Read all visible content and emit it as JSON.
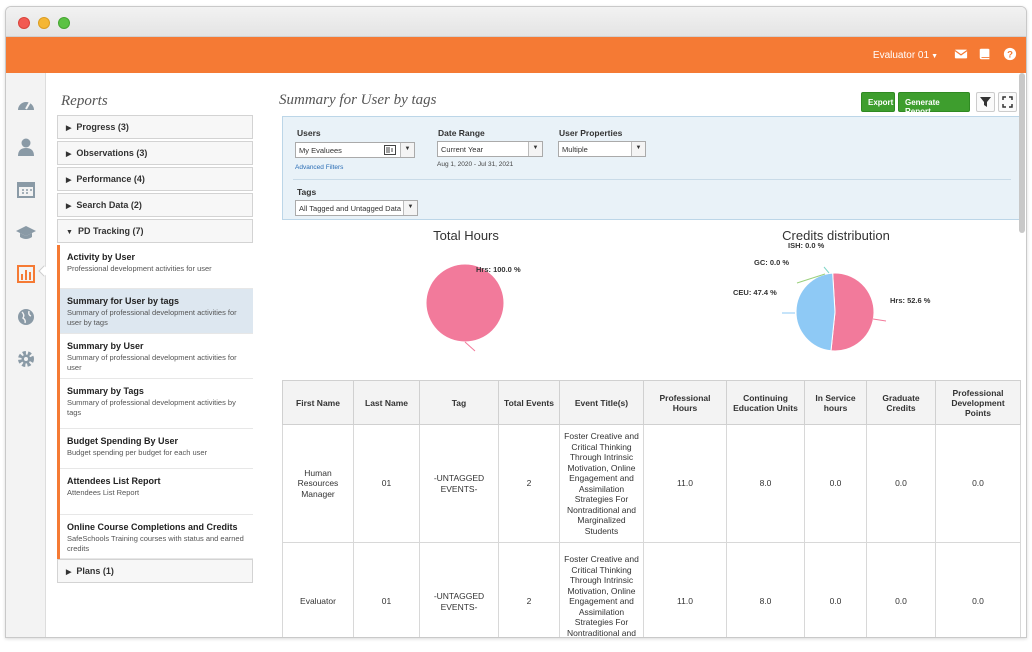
{
  "app": {
    "user_menu": "Evaluator 01",
    "icons": [
      "mail-icon",
      "book-icon",
      "help-icon"
    ],
    "accent": "#f57a34"
  },
  "rail": {
    "icons": [
      "dashboard-icon",
      "user-icon",
      "calendar-icon",
      "graduation-cap-icon",
      "bar-chart-icon",
      "globe-icon",
      "gear-icon"
    ],
    "active": "bar-chart-icon"
  },
  "sidebar": {
    "title": "Reports",
    "sections_top": [
      {
        "label": "Progress (3)"
      },
      {
        "label": "Observations (3)"
      },
      {
        "label": "Performance (4)"
      },
      {
        "label": "Search Data (2)"
      },
      {
        "label": "PD Tracking (7)"
      }
    ],
    "items": [
      {
        "title": "Activity by User",
        "desc": "Professional development activities for user"
      },
      {
        "title": "Summary for User by tags",
        "desc": "Summary of professional development activities for user by tags"
      },
      {
        "title": "Summary by User",
        "desc": "Summary of professional development activities for user"
      },
      {
        "title": "Summary by Tags",
        "desc": "Summary of professional development activities by tags"
      },
      {
        "title": "Budget Spending By User",
        "desc": "Budget spending per budget for each user"
      },
      {
        "title": "Attendees List Report",
        "desc": "Attendees List Report"
      },
      {
        "title": "Online Course Completions and Credits",
        "desc": "SafeSchools Training courses with status and earned credits"
      }
    ],
    "section_bottom": {
      "label": "Plans (1)"
    }
  },
  "main": {
    "title": "Summary for User by tags",
    "export_label": "Export",
    "generate_label": "Generate Report",
    "filters": {
      "users_label": "Users",
      "users_value": "My Evaluees",
      "advanced_filters": "Advanced Filters",
      "date_label": "Date Range",
      "date_value": "Current Year",
      "date_note": "Aug 1, 2020 - Jul 31, 2021",
      "props_label": "User Properties",
      "props_value": "Multiple",
      "tags_label": "Tags",
      "tags_value": "All Tagged and Untagged Data"
    }
  },
  "chart_data": [
    {
      "type": "pie",
      "title": "Total Hours",
      "slices": [
        {
          "label": "Hrs",
          "value": 100.0,
          "label_text": "Hrs: 100.0 %",
          "color": "#f27a9b"
        }
      ]
    },
    {
      "type": "pie",
      "title": "Credits distribution",
      "slices": [
        {
          "label": "Hrs",
          "value": 52.6,
          "label_text": "Hrs: 52.6 %",
          "color": "#f27a9b"
        },
        {
          "label": "CEU",
          "value": 47.4,
          "label_text": "CEU: 47.4 %",
          "color": "#8ec9f5"
        },
        {
          "label": "GC",
          "value": 0.0,
          "label_text": "GC: 0.0 %",
          "color": "#9ad07c"
        },
        {
          "label": "ISH",
          "value": 0.0,
          "label_text": "ISH: 0.0 %",
          "color": "#7fd6c8"
        }
      ]
    }
  ],
  "table": {
    "headers": [
      "First Name",
      "Last Name",
      "Tag",
      "Total Events",
      "Event Title(s)",
      "Professional Hours",
      "Continuing Education Units",
      "In Service hours",
      "Graduate Credits",
      "Professional Development Points"
    ],
    "rows": [
      [
        "Human Resources Manager",
        "01",
        "-UNTAGGED EVENTS-",
        "2",
        "Foster Creative and Critical Thinking Through Intrinsic Motivation, Online Engagement and Assimilation Strategies For Nontraditional and Marginalized Students",
        "11.0",
        "8.0",
        "0.0",
        "0.0",
        "0.0"
      ],
      [
        "Evaluator",
        "01",
        "-UNTAGGED EVENTS-",
        "2",
        "Foster Creative and Critical Thinking Through Intrinsic Motivation, Online Engagement and Assimilation Strategies For Nontraditional and Marginalized",
        "11.0",
        "8.0",
        "0.0",
        "0.0",
        "0.0"
      ]
    ]
  }
}
